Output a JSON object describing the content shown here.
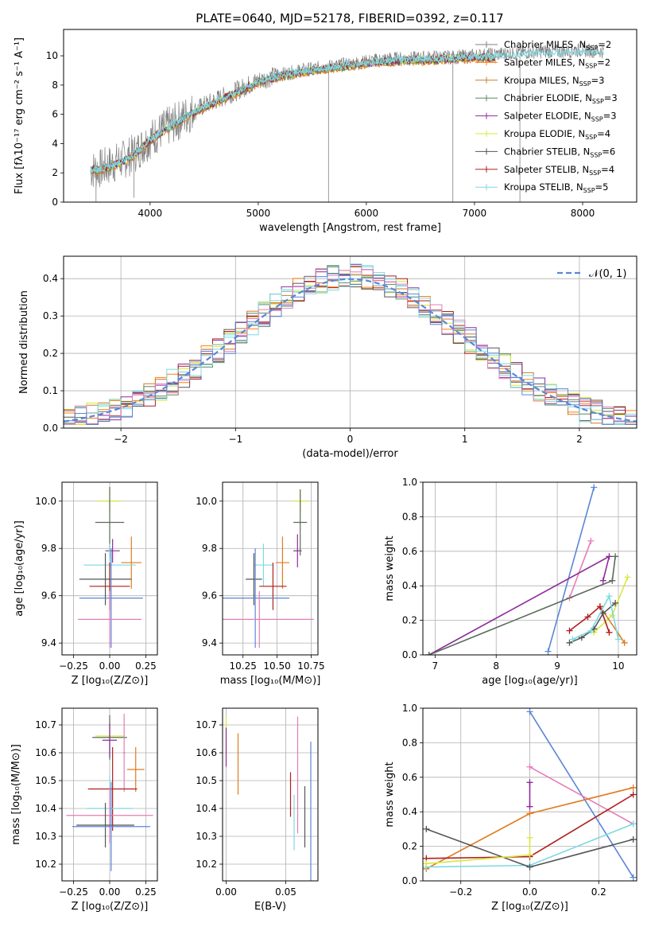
{
  "figure": {
    "title": "PLATE=0640, MJD=52178, FIBERID=0392, z=0.117"
  },
  "colors": {
    "Chabrier MILES": "#808080",
    "Salpeter MILES": "#ff7f0e",
    "Kroupa MILES": "#c87d2a",
    "Chabrier ELODIE": "#5a8a5a",
    "Salpeter ELODIE": "#8e2c9c",
    "Kroupa ELODIE": "#d8e840",
    "Chabrier STELIB": "#555555",
    "Salpeter STELIB": "#b01e1e",
    "Kroupa STELIB": "#7fd8e0",
    "blue": "#5b86d6",
    "pink": "#e57db8",
    "orange": "#e07b1f",
    "darkgreen": "#5b6b5b"
  },
  "chart_data": [
    {
      "id": "spectrum",
      "type": "line",
      "title": "PLATE=0640, MJD=52178, FIBERID=0392, z=0.117",
      "xlabel": "wavelength [Angstrom, rest frame]",
      "ylabel": "Flux [f_λ10^-17 erg cm^-2 s^-1 A^-1]",
      "xlim": [
        3200,
        8500
      ],
      "ylim": [
        0,
        11.8
      ],
      "xticks": [
        4000,
        5000,
        6000,
        7000,
        8000
      ],
      "yticks": [
        0,
        2,
        4,
        6,
        8,
        10
      ],
      "grid": false,
      "legend_position": "right",
      "legend": [
        "Chabrier MILES, N_SSP=2",
        "Salpeter MILES, N_SSP=2",
        "Kroupa MILES, N_SSP=3",
        "Chabrier ELODIE, N_SSP=3",
        "Salpeter ELODIE, N_SSP=3",
        "Kroupa ELODIE, N_SSP=4",
        "Chabrier STELIB, N_SSP=6",
        "Salpeter STELIB, N_SSP=4",
        "Kroupa STELIB, N_SSP=5"
      ],
      "series": [
        {
          "name": "data",
          "color": "#808080",
          "x": [
            3450,
            3550,
            3650,
            3750,
            3850,
            3950,
            4050,
            4150,
            4250,
            4350,
            4500,
            4650,
            4800,
            5000,
            5200,
            5400,
            5600,
            5800,
            6000,
            6200,
            6400,
            6600,
            6800,
            7000,
            7200,
            7400,
            7600,
            7800,
            8000,
            8200
          ],
          "y": [
            2.2,
            2.3,
            2.6,
            2.9,
            3.3,
            4.0,
            4.6,
            5.1,
            5.5,
            6.0,
            6.6,
            7.1,
            7.6,
            8.3,
            8.7,
            9.0,
            9.2,
            9.4,
            9.6,
            9.8,
            9.8,
            9.9,
            9.9,
            10.0,
            10.1,
            10.2,
            10.3,
            10.3,
            10.4,
            10.3
          ]
        },
        {
          "name": "model",
          "color": "#7fd8e0",
          "x": [
            3450,
            3550,
            3650,
            3750,
            3850,
            3950,
            4050,
            4150,
            4250,
            4350,
            4500,
            4650,
            4800,
            5000,
            5200,
            5400,
            5600,
            5800,
            6000,
            6200,
            6400,
            6600,
            6800,
            7000,
            7200
          ],
          "y": [
            2.2,
            2.25,
            2.5,
            2.8,
            3.2,
            3.9,
            4.5,
            5.0,
            5.4,
            5.9,
            6.5,
            7.0,
            7.5,
            8.2,
            8.6,
            8.9,
            9.1,
            9.3,
            9.5,
            9.6,
            9.7,
            9.7,
            9.8,
            9.9,
            9.8
          ]
        }
      ]
    },
    {
      "id": "residuals",
      "type": "line",
      "xlabel": "(data-model)/error",
      "ylabel": "Normed distribution",
      "xlim": [
        -2.5,
        2.5
      ],
      "ylim": [
        0,
        0.46
      ],
      "xticks": [
        -2,
        -1,
        0,
        1,
        2
      ],
      "yticks": [
        0.0,
        0.1,
        0.2,
        0.3,
        0.4
      ],
      "grid": true,
      "legend_position": "top-right",
      "legend": [
        "𝒩(0, 1)"
      ]
    },
    {
      "id": "age_vs_Z",
      "type": "scatter",
      "xlabel": "Z [log10(Z/Z⊙)]",
      "ylabel": "age  [log10(age/yr)]",
      "xlim": [
        -0.33,
        0.33
      ],
      "ylim": [
        9.35,
        10.08
      ],
      "xticks": [
        -0.25,
        0.0,
        0.25
      ],
      "yticks": [
        9.4,
        9.6,
        9.8,
        10.0
      ],
      "grid": true,
      "points": [
        {
          "color": "#d8e840",
          "x": 0.0,
          "y": 10.0,
          "xerr": 0.08,
          "yerr": 0.05
        },
        {
          "color": "#5b6b5b",
          "x": 0.0,
          "y": 9.91,
          "xerr": 0.1,
          "yerr": 0.15
        },
        {
          "color": "#8e2c9c",
          "x": 0.02,
          "y": 9.79,
          "xerr": 0.05,
          "yerr": 0.05
        },
        {
          "color": "#e07b1f",
          "x": 0.15,
          "y": 9.74,
          "xerr": 0.07,
          "yerr": 0.11
        },
        {
          "color": "#7fd8e0",
          "x": 0.0,
          "y": 9.73,
          "xerr": 0.18,
          "yerr": 0.09
        },
        {
          "color": "#555555",
          "x": -0.03,
          "y": 9.67,
          "xerr": 0.18,
          "yerr": 0.11
        },
        {
          "color": "#b01e1e",
          "x": 0.0,
          "y": 9.64,
          "xerr": 0.14,
          "yerr": 0.1
        },
        {
          "color": "#5b86d6",
          "x": 0.01,
          "y": 9.59,
          "xerr": 0.22,
          "yerr": 0.21
        },
        {
          "color": "#e57db8",
          "x": 0.0,
          "y": 9.5,
          "xerr": 0.22,
          "yerr": 0.12
        }
      ]
    },
    {
      "id": "age_vs_mass",
      "type": "scatter",
      "xlabel": "mass [log10(M/M⊙)]",
      "ylabel": "",
      "xlim": [
        10.1,
        10.8
      ],
      "ylim": [
        9.35,
        10.08
      ],
      "xticks": [
        10.25,
        10.5,
        10.75
      ],
      "yticks": [
        9.4,
        9.6,
        9.8,
        10.0
      ],
      "grid": true,
      "points": [
        {
          "color": "#d8e840",
          "x": 10.67,
          "y": 10.0,
          "xerr": 0.05,
          "yerr": 0.05
        },
        {
          "color": "#5b6b5b",
          "x": 10.67,
          "y": 9.91,
          "xerr": 0.05,
          "yerr": 0.14
        },
        {
          "color": "#8e2c9c",
          "x": 10.65,
          "y": 9.79,
          "xerr": 0.03,
          "yerr": 0.07
        },
        {
          "color": "#e07b1f",
          "x": 10.54,
          "y": 9.74,
          "xerr": 0.05,
          "yerr": 0.11
        },
        {
          "color": "#7fd8e0",
          "x": 10.4,
          "y": 9.73,
          "xerr": 0.07,
          "yerr": 0.09
        },
        {
          "color": "#555555",
          "x": 10.33,
          "y": 9.67,
          "xerr": 0.06,
          "yerr": 0.11
        },
        {
          "color": "#b01e1e",
          "x": 10.47,
          "y": 9.64,
          "xerr": 0.1,
          "yerr": 0.1
        },
        {
          "color": "#5b86d6",
          "x": 10.34,
          "y": 9.59,
          "xerr": 0.25,
          "yerr": 0.21
        },
        {
          "color": "#e57db8",
          "x": 10.37,
          "y": 9.5,
          "xerr": 0.4,
          "yerr": 0.12
        }
      ]
    },
    {
      "id": "weight_vs_age",
      "type": "line",
      "xlabel": "age  [log10(age/yr)]",
      "ylabel": "mass weight",
      "xlim": [
        6.8,
        10.3
      ],
      "ylim": [
        0,
        1.0
      ],
      "xticks": [
        7,
        8,
        9,
        10
      ],
      "yticks": [
        0.0,
        0.2,
        0.4,
        0.6,
        0.8,
        1.0
      ],
      "grid": true,
      "series": [
        {
          "color": "#5b86d6",
          "x": [
            8.85,
            9.6
          ],
          "y": [
            0.02,
            0.97
          ]
        },
        {
          "color": "#e57db8",
          "x": [
            9.2,
            9.55
          ],
          "y": [
            0.33,
            0.66
          ]
        },
        {
          "color": "#8e2c9c",
          "x": [
            6.9,
            9.85,
            9.75
          ],
          "y": [
            0.0,
            0.57,
            0.43
          ]
        },
        {
          "color": "#5b6b5b",
          "x": [
            6.9,
            9.9,
            9.95
          ],
          "y": [
            0.0,
            0.43,
            0.57
          ]
        },
        {
          "color": "#d8e840",
          "x": [
            9.6,
            9.9,
            10.15
          ],
          "y": [
            0.13,
            0.23,
            0.45
          ]
        },
        {
          "color": "#e07b1f",
          "x": [
            9.7,
            10.1
          ],
          "y": [
            0.28,
            0.07
          ]
        },
        {
          "color": "#b01e1e",
          "x": [
            9.2,
            9.5,
            9.7,
            9.85
          ],
          "y": [
            0.14,
            0.22,
            0.28,
            0.13
          ]
        },
        {
          "color": "#555555",
          "x": [
            9.2,
            9.4,
            9.6,
            9.75,
            9.95
          ],
          "y": [
            0.07,
            0.1,
            0.15,
            0.24,
            0.3
          ]
        },
        {
          "color": "#7fd8e0",
          "x": [
            9.25,
            9.55,
            9.85,
            10.0
          ],
          "y": [
            0.09,
            0.14,
            0.34,
            0.09
          ]
        }
      ]
    },
    {
      "id": "mass_vs_Z",
      "type": "scatter",
      "xlabel": "Z [log10(Z/Z⊙)]",
      "ylabel": "mass [log10(M/M⊙)]",
      "xlim": [
        -0.33,
        0.33
      ],
      "ylim": [
        10.14,
        10.76
      ],
      "xticks": [
        -0.25,
        0.0,
        0.25
      ],
      "yticks": [
        10.2,
        10.3,
        10.4,
        10.5,
        10.6,
        10.7
      ],
      "grid": true,
      "points": [
        {
          "color": "#d8e840",
          "x": 0.0,
          "y": 10.66,
          "xerr": 0.1,
          "yerr": 0.06
        },
        {
          "color": "#5b6b5b",
          "x": 0.0,
          "y": 10.655,
          "xerr": 0.12,
          "yerr": 0.08
        },
        {
          "color": "#8e2c9c",
          "x": 0.0,
          "y": 10.645,
          "xerr": 0.05,
          "yerr": 0.06
        },
        {
          "color": "#e57db8",
          "x": 0.1,
          "y": 10.6,
          "xerr": 0.01,
          "yerr": 0.14
        },
        {
          "color": "#e07b1f",
          "x": 0.18,
          "y": 10.54,
          "xerr": 0.06,
          "yerr": 0.08
        },
        {
          "color": "#b01e1e",
          "x": 0.02,
          "y": 10.47,
          "xerr": 0.17,
          "yerr": 0.15
        },
        {
          "color": "#7fd8e0",
          "x": 0.0,
          "y": 10.4,
          "xerr": 0.16,
          "yerr": 0.12
        },
        {
          "color": "#e57db8",
          "x": 0.0,
          "y": 10.375,
          "xerr": 0.3,
          "yerr": 0.1
        },
        {
          "color": "#555555",
          "x": -0.03,
          "y": 10.34,
          "xerr": 0.2,
          "yerr": 0.08
        },
        {
          "color": "#5b86d6",
          "x": 0.01,
          "y": 10.335,
          "xerr": 0.27,
          "yerr": 0.16
        }
      ]
    },
    {
      "id": "mass_vs_EBV",
      "type": "scatter",
      "xlabel": "E(B-V)",
      "ylabel": "",
      "xlim": [
        -0.003,
        0.077
      ],
      "ylim": [
        10.14,
        10.76
      ],
      "xticks": [
        0.0,
        0.05
      ],
      "yticks": [
        10.2,
        10.3,
        10.4,
        10.5,
        10.6,
        10.7
      ],
      "grid": true,
      "points": [
        {
          "color": "#d8e840",
          "x": 0.0,
          "y": 10.66,
          "yerr": 0.07
        },
        {
          "color": "#8e2c9c",
          "x": 0.0,
          "y": 10.62,
          "yerr": 0.07
        },
        {
          "color": "#e07b1f",
          "x": 0.01,
          "y": 10.56,
          "yerr": 0.11
        },
        {
          "color": "#b01e1e",
          "x": 0.054,
          "y": 10.45,
          "yerr": 0.08
        },
        {
          "color": "#7fd8e0",
          "x": 0.057,
          "y": 10.35,
          "yerr": 0.1
        },
        {
          "color": "#e57db8",
          "x": 0.06,
          "y": 10.52,
          "yerr": 0.21
        },
        {
          "color": "#555555",
          "x": 0.066,
          "y": 10.37,
          "yerr": 0.11
        },
        {
          "color": "#5b86d6",
          "x": 0.071,
          "y": 10.39,
          "yerr": 0.25
        }
      ]
    },
    {
      "id": "weight_vs_Z",
      "type": "line",
      "xlabel": "Z [log10(Z/Z⊙)]",
      "ylabel": "mass weight",
      "xlim": [
        -0.31,
        0.31
      ],
      "ylim": [
        0,
        1.0
      ],
      "xticks": [
        -0.2,
        0.0,
        0.2
      ],
      "yticks": [
        0.0,
        0.2,
        0.4,
        0.6,
        0.8,
        1.0
      ],
      "grid": true,
      "series": [
        {
          "color": "#5b86d6",
          "x": [
            0.0,
            0.3
          ],
          "y": [
            0.98,
            0.02
          ]
        },
        {
          "color": "#e57db8",
          "x": [
            0.0,
            0.3
          ],
          "y": [
            0.66,
            0.33
          ]
        },
        {
          "color": "#e07b1f",
          "x": [
            -0.3,
            0.0,
            0.3
          ],
          "y": [
            0.07,
            0.39,
            0.54
          ]
        },
        {
          "color": "#b01e1e",
          "x": [
            -0.3,
            0.0,
            0.3
          ],
          "y": [
            0.13,
            0.14,
            0.5
          ]
        },
        {
          "color": "#7fd8e0",
          "x": [
            -0.3,
            0.0,
            0.3
          ],
          "y": [
            0.08,
            0.09,
            0.33
          ]
        },
        {
          "color": "#555555",
          "x": [
            -0.3,
            0.0,
            0.3
          ],
          "y": [
            0.3,
            0.08,
            0.24
          ]
        },
        {
          "color": "#8e2c9c",
          "x": [
            0.0,
            0.0
          ],
          "y": [
            0.43,
            0.57
          ]
        },
        {
          "color": "#d8e840",
          "x": [
            0.0,
            0.0,
            -0.3
          ],
          "y": [
            0.25,
            0.15,
            0.1
          ]
        }
      ]
    }
  ]
}
